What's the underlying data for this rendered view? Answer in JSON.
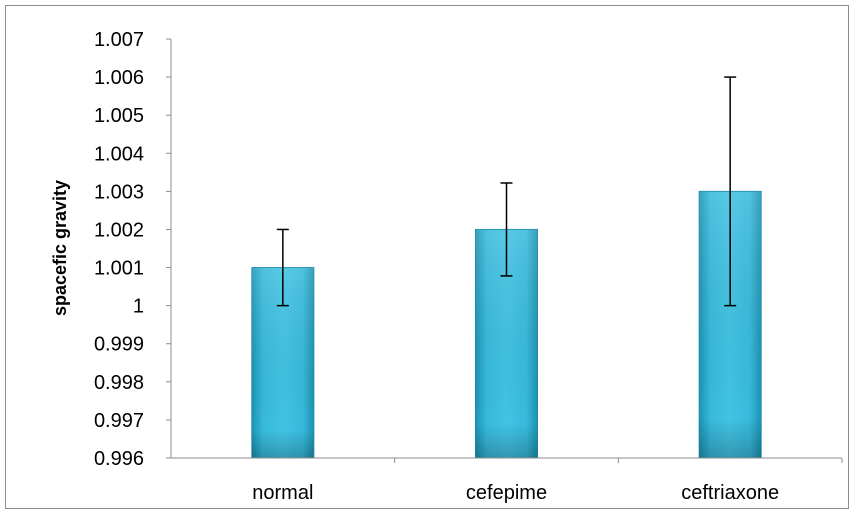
{
  "chart_data": {
    "type": "bar",
    "title": "",
    "xlabel": "",
    "ylabel": "spacefic gravity",
    "categories": [
      "normal",
      "cefepime",
      "ceftriaxone"
    ],
    "values": [
      1.001,
      1.002,
      1.003
    ],
    "error_high": [
      1.002,
      1.00322,
      1.006
    ],
    "error_low": [
      1.0,
      1.00078,
      1.0
    ],
    "ylim": [
      0.996,
      1.007
    ],
    "yticks": [
      0.996,
      0.997,
      0.998,
      0.999,
      1,
      1.001,
      1.002,
      1.003,
      1.004,
      1.005,
      1.006,
      1.007
    ],
    "ytick_labels": [
      "0.996",
      "0.997",
      "0.998",
      "0.999",
      "1",
      "1.001",
      "1.002",
      "1.003",
      "1.004",
      "1.005",
      "1.006",
      "1.007"
    ],
    "grid": false,
    "legend": "none",
    "bar_color": "#31B3D6",
    "bar_edge_color": "#1B8EAD"
  }
}
